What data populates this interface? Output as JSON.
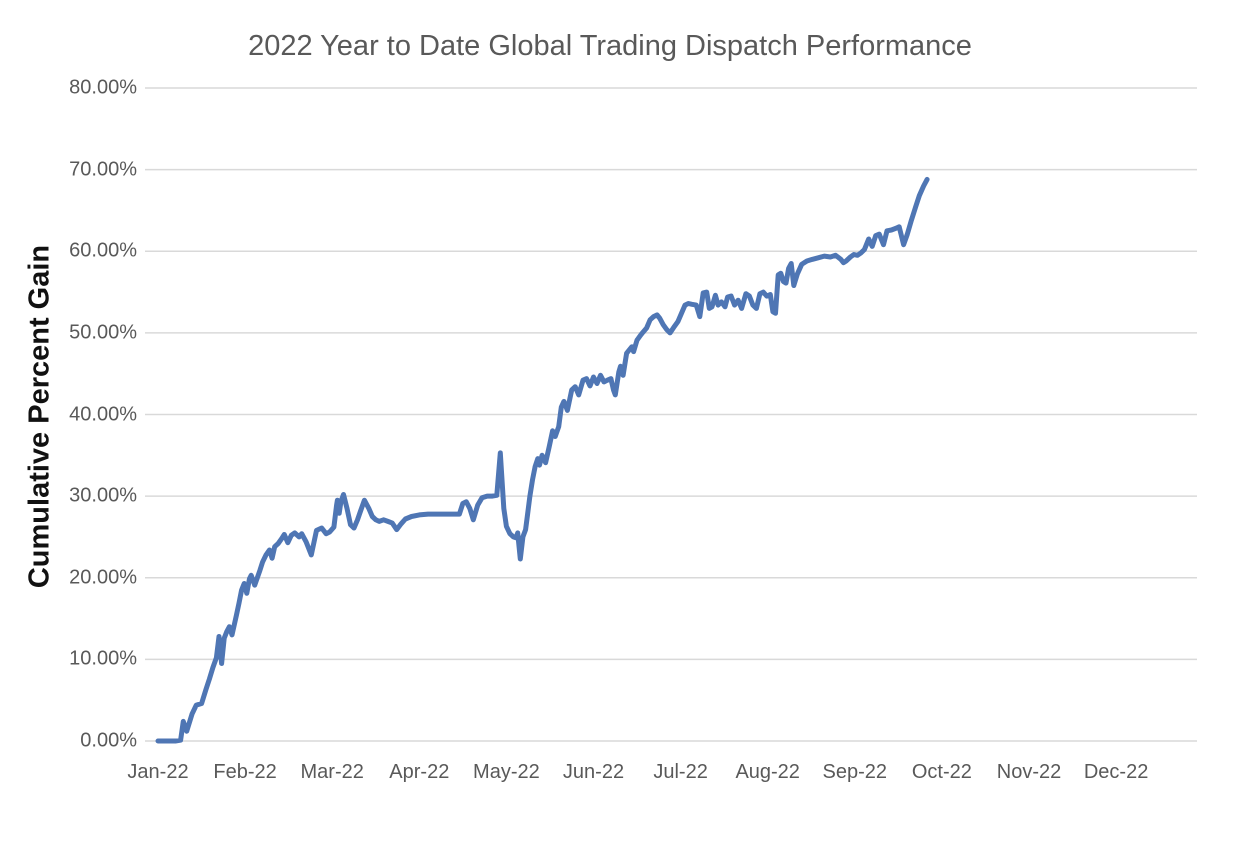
{
  "chart": {
    "title": "2022 Year to Date Global Trading Dispatch Performance",
    "y_axis_title": "Cumulative Percent Gain"
  },
  "colors": {
    "background": "#ffffff",
    "title_text": "#595959",
    "axis_text": "#595959",
    "y_axis_title_text": "#111111",
    "gridline": "#d9d9d9",
    "line": "#4f76b4"
  },
  "chart_data": {
    "type": "line",
    "title": "2022 Year to Date Global Trading Dispatch Performance",
    "xlabel": "",
    "ylabel": "Cumulative Percent Gain",
    "x_categories": [
      "Jan-22",
      "Feb-22",
      "Mar-22",
      "Apr-22",
      "May-22",
      "Jun-22",
      "Jul-22",
      "Aug-22",
      "Sep-22",
      "Oct-22",
      "Nov-22",
      "Dec-22"
    ],
    "y_tick_labels": [
      "0.00%",
      "10.00%",
      "20.00%",
      "30.00%",
      "40.00%",
      "50.00%",
      "60.00%",
      "70.00%",
      "80.00%"
    ],
    "ylim": [
      0,
      80
    ],
    "xlim_months": [
      0,
      11
    ],
    "grid": true,
    "legend": false,
    "line_color": "#4f76b4",
    "series": [
      {
        "name": "Cumulative Percent Gain",
        "x_unit": "months_since_jan_2022_start",
        "y_unit": "percent",
        "points": [
          [
            0.0,
            0.0
          ],
          [
            0.1,
            0.0
          ],
          [
            0.2,
            0.0
          ],
          [
            0.26,
            0.1
          ],
          [
            0.29,
            2.4
          ],
          [
            0.33,
            1.2
          ],
          [
            0.39,
            3.3
          ],
          [
            0.44,
            4.4
          ],
          [
            0.5,
            4.6
          ],
          [
            0.55,
            6.3
          ],
          [
            0.59,
            7.6
          ],
          [
            0.63,
            9.0
          ],
          [
            0.67,
            10.2
          ],
          [
            0.7,
            12.8
          ],
          [
            0.73,
            9.5
          ],
          [
            0.76,
            12.6
          ],
          [
            0.79,
            13.4
          ],
          [
            0.82,
            14.0
          ],
          [
            0.85,
            13.0
          ],
          [
            0.9,
            15.4
          ],
          [
            0.93,
            16.9
          ],
          [
            0.96,
            18.5
          ],
          [
            0.99,
            19.3
          ],
          [
            1.02,
            18.1
          ],
          [
            1.05,
            19.9
          ],
          [
            1.07,
            20.3
          ],
          [
            1.11,
            19.1
          ],
          [
            1.14,
            20.0
          ],
          [
            1.17,
            20.9
          ],
          [
            1.2,
            21.9
          ],
          [
            1.24,
            22.8
          ],
          [
            1.28,
            23.4
          ],
          [
            1.31,
            22.4
          ],
          [
            1.34,
            23.8
          ],
          [
            1.38,
            24.2
          ],
          [
            1.42,
            24.8
          ],
          [
            1.45,
            25.3
          ],
          [
            1.49,
            24.3
          ],
          [
            1.53,
            25.2
          ],
          [
            1.57,
            25.5
          ],
          [
            1.62,
            25.0
          ],
          [
            1.65,
            25.4
          ],
          [
            1.7,
            24.4
          ],
          [
            1.76,
            22.8
          ],
          [
            1.82,
            25.8
          ],
          [
            1.88,
            26.1
          ],
          [
            1.93,
            25.4
          ],
          [
            1.97,
            25.6
          ],
          [
            2.02,
            26.2
          ],
          [
            2.05,
            28.9
          ],
          [
            2.06,
            29.5
          ],
          [
            2.08,
            27.9
          ],
          [
            2.1,
            29.3
          ],
          [
            2.13,
            30.2
          ],
          [
            2.17,
            28.5
          ],
          [
            2.21,
            26.5
          ],
          [
            2.25,
            26.1
          ],
          [
            2.29,
            27.1
          ],
          [
            2.33,
            28.3
          ],
          [
            2.37,
            29.5
          ],
          [
            2.42,
            28.5
          ],
          [
            2.46,
            27.5
          ],
          [
            2.5,
            27.1
          ],
          [
            2.54,
            26.9
          ],
          [
            2.59,
            27.1
          ],
          [
            2.64,
            26.9
          ],
          [
            2.69,
            26.7
          ],
          [
            2.74,
            25.9
          ],
          [
            2.79,
            26.6
          ],
          [
            2.84,
            27.2
          ],
          [
            2.91,
            27.5
          ],
          [
            3.0,
            27.7
          ],
          [
            3.1,
            27.8
          ],
          [
            3.2,
            27.8
          ],
          [
            3.3,
            27.8
          ],
          [
            3.4,
            27.8
          ],
          [
            3.46,
            27.8
          ],
          [
            3.5,
            29.1
          ],
          [
            3.54,
            29.3
          ],
          [
            3.58,
            28.5
          ],
          [
            3.62,
            27.1
          ],
          [
            3.67,
            28.9
          ],
          [
            3.72,
            29.8
          ],
          [
            3.78,
            30.0
          ],
          [
            3.84,
            30.0
          ],
          [
            3.89,
            30.1
          ],
          [
            3.93,
            35.3
          ],
          [
            3.97,
            28.5
          ],
          [
            4.0,
            26.3
          ],
          [
            4.04,
            25.4
          ],
          [
            4.08,
            25.0
          ],
          [
            4.11,
            24.9
          ],
          [
            4.13,
            25.5
          ],
          [
            4.16,
            22.3
          ],
          [
            4.19,
            25.0
          ],
          [
            4.22,
            25.9
          ],
          [
            4.24,
            27.5
          ],
          [
            4.27,
            30.0
          ],
          [
            4.3,
            32.0
          ],
          [
            4.33,
            33.6
          ],
          [
            4.36,
            34.6
          ],
          [
            4.38,
            33.8
          ],
          [
            4.41,
            35.0
          ],
          [
            4.45,
            34.1
          ],
          [
            4.49,
            36.0
          ],
          [
            4.53,
            38.0
          ],
          [
            4.56,
            37.3
          ],
          [
            4.6,
            38.5
          ],
          [
            4.63,
            40.9
          ],
          [
            4.66,
            41.6
          ],
          [
            4.7,
            40.5
          ],
          [
            4.75,
            43.0
          ],
          [
            4.79,
            43.4
          ],
          [
            4.83,
            42.4
          ],
          [
            4.88,
            44.2
          ],
          [
            4.92,
            44.4
          ],
          [
            4.96,
            43.5
          ],
          [
            5.0,
            44.6
          ],
          [
            5.04,
            43.8
          ],
          [
            5.08,
            44.8
          ],
          [
            5.12,
            44.0
          ],
          [
            5.16,
            44.2
          ],
          [
            5.2,
            44.4
          ],
          [
            5.23,
            43.0
          ],
          [
            5.25,
            42.4
          ],
          [
            5.29,
            45.2
          ],
          [
            5.31,
            45.9
          ],
          [
            5.34,
            44.8
          ],
          [
            5.38,
            47.5
          ],
          [
            5.41,
            47.9
          ],
          [
            5.44,
            48.3
          ],
          [
            5.46,
            47.7
          ],
          [
            5.5,
            49.1
          ],
          [
            5.54,
            49.7
          ],
          [
            5.57,
            50.1
          ],
          [
            5.61,
            50.6
          ],
          [
            5.65,
            51.6
          ],
          [
            5.69,
            52.0
          ],
          [
            5.73,
            52.2
          ],
          [
            5.76,
            51.8
          ],
          [
            5.8,
            51.0
          ],
          [
            5.84,
            50.4
          ],
          [
            5.88,
            50.0
          ],
          [
            5.93,
            50.8
          ],
          [
            5.97,
            51.4
          ],
          [
            6.01,
            52.4
          ],
          [
            6.05,
            53.4
          ],
          [
            6.09,
            53.6
          ],
          [
            6.13,
            53.5
          ],
          [
            6.18,
            53.4
          ],
          [
            6.22,
            52.0
          ],
          [
            6.26,
            54.9
          ],
          [
            6.3,
            55.0
          ],
          [
            6.33,
            53.0
          ],
          [
            6.36,
            53.2
          ],
          [
            6.4,
            54.6
          ],
          [
            6.43,
            53.4
          ],
          [
            6.47,
            53.8
          ],
          [
            6.51,
            53.2
          ],
          [
            6.54,
            54.4
          ],
          [
            6.58,
            54.5
          ],
          [
            6.62,
            53.4
          ],
          [
            6.66,
            54.0
          ],
          [
            6.7,
            53.0
          ],
          [
            6.75,
            54.8
          ],
          [
            6.79,
            54.5
          ],
          [
            6.83,
            53.4
          ],
          [
            6.87,
            53.0
          ],
          [
            6.91,
            54.8
          ],
          [
            6.95,
            55.0
          ],
          [
            6.99,
            54.5
          ],
          [
            7.03,
            54.7
          ],
          [
            7.06,
            52.6
          ],
          [
            7.09,
            52.4
          ],
          [
            7.12,
            57.1
          ],
          [
            7.15,
            57.3
          ],
          [
            7.18,
            56.3
          ],
          [
            7.21,
            56.1
          ],
          [
            7.24,
            57.9
          ],
          [
            7.27,
            58.5
          ],
          [
            7.3,
            55.8
          ],
          [
            7.34,
            57.2
          ],
          [
            7.39,
            58.4
          ],
          [
            7.45,
            58.8
          ],
          [
            7.51,
            59.0
          ],
          [
            7.58,
            59.2
          ],
          [
            7.65,
            59.4
          ],
          [
            7.72,
            59.3
          ],
          [
            7.78,
            59.5
          ],
          [
            7.84,
            59.0
          ],
          [
            7.87,
            58.6
          ],
          [
            7.9,
            58.8
          ],
          [
            7.95,
            59.3
          ],
          [
            7.99,
            59.6
          ],
          [
            8.03,
            59.5
          ],
          [
            8.07,
            59.8
          ],
          [
            8.11,
            60.2
          ],
          [
            8.16,
            61.5
          ],
          [
            8.2,
            60.6
          ],
          [
            8.24,
            61.9
          ],
          [
            8.28,
            62.1
          ],
          [
            8.33,
            60.8
          ],
          [
            8.37,
            62.5
          ],
          [
            8.42,
            62.6
          ],
          [
            8.47,
            62.8
          ],
          [
            8.51,
            63.0
          ],
          [
            8.56,
            60.8
          ],
          [
            8.6,
            62.0
          ],
          [
            8.65,
            63.8
          ],
          [
            8.7,
            65.5
          ],
          [
            8.74,
            66.8
          ],
          [
            8.79,
            68.0
          ],
          [
            8.83,
            68.8
          ]
        ]
      }
    ]
  }
}
